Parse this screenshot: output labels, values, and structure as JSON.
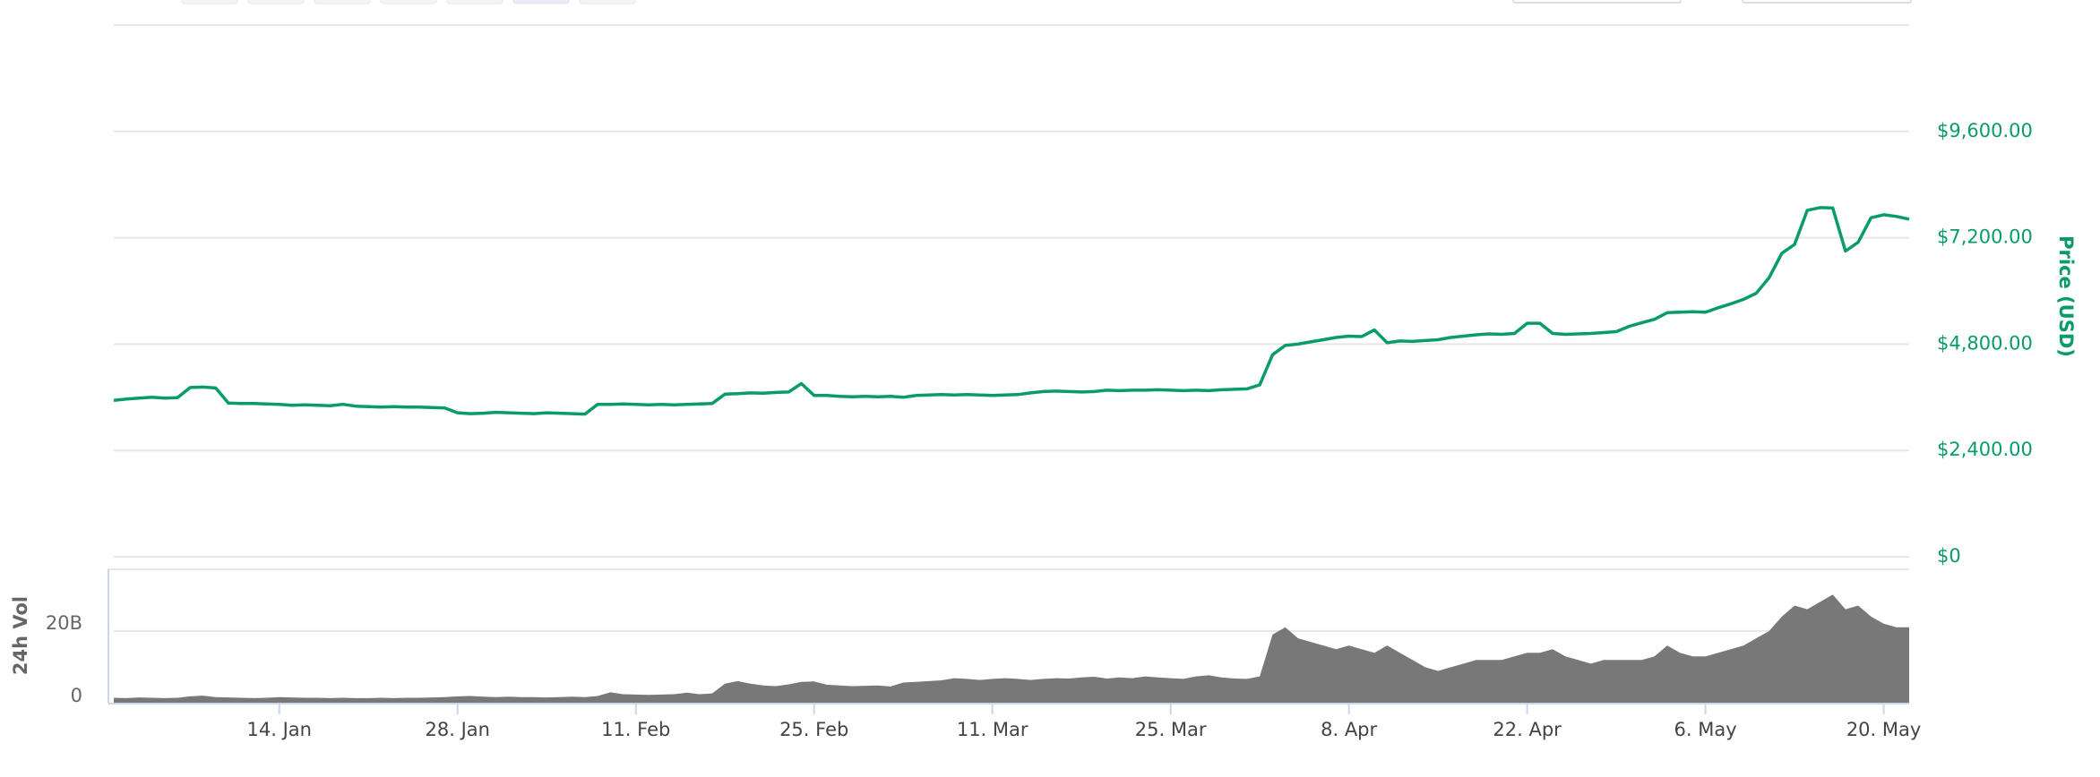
{
  "chart_data": {
    "type": "line",
    "ylabel": "Price (USD)",
    "y2label": "24h Vol",
    "x": [
      "1. Jan",
      "2. Jan",
      "3. Jan",
      "4. Jan",
      "5. Jan",
      "6. Jan",
      "7. Jan",
      "8. Jan",
      "9. Jan",
      "10. Jan",
      "11. Jan",
      "12. Jan",
      "13. Jan",
      "14. Jan",
      "15. Jan",
      "16. Jan",
      "17. Jan",
      "18. Jan",
      "19. Jan",
      "20. Jan",
      "21. Jan",
      "22. Jan",
      "23. Jan",
      "24. Jan",
      "25. Jan",
      "26. Jan",
      "27. Jan",
      "28. Jan",
      "29. Jan",
      "30. Jan",
      "31. Jan",
      "1. Feb",
      "2. Feb",
      "3. Feb",
      "4. Feb",
      "5. Feb",
      "6. Feb",
      "7. Feb",
      "8. Feb",
      "9. Feb",
      "10. Feb",
      "11. Feb",
      "12. Feb",
      "13. Feb",
      "14. Feb",
      "15. Feb",
      "16. Feb",
      "17. Feb",
      "18. Feb",
      "19. Feb",
      "20. Feb",
      "21. Feb",
      "22. Feb",
      "23. Feb",
      "24. Feb",
      "25. Feb",
      "26. Feb",
      "27. Feb",
      "28. Feb",
      "1. Mar",
      "2. Mar",
      "3. Mar",
      "4. Mar",
      "5. Mar",
      "6. Mar",
      "7. Mar",
      "8. Mar",
      "9. Mar",
      "10. Mar",
      "11. Mar",
      "12. Mar",
      "13. Mar",
      "14. Mar",
      "15. Mar",
      "16. Mar",
      "17. Mar",
      "18. Mar",
      "19. Mar",
      "20. Mar",
      "21. Mar",
      "22. Mar",
      "23. Mar",
      "24. Mar",
      "25. Mar",
      "26. Mar",
      "27. Mar",
      "28. Mar",
      "29. Mar",
      "30. Mar",
      "31. Mar",
      "1. Apr",
      "2. Apr",
      "3. Apr",
      "4. Apr",
      "5. Apr",
      "6. Apr",
      "7. Apr",
      "8. Apr",
      "9. Apr",
      "10. Apr",
      "11. Apr",
      "12. Apr",
      "13. Apr",
      "14. Apr",
      "15. Apr",
      "16. Apr",
      "17. Apr",
      "18. Apr",
      "19. Apr",
      "20. Apr",
      "21. Apr",
      "22. Apr",
      "23. Apr",
      "24. Apr",
      "25. Apr",
      "26. Apr",
      "27. Apr",
      "28. Apr",
      "29. Apr",
      "30. Apr",
      "1. May",
      "2. May",
      "3. May",
      "4. May",
      "5. May",
      "6. May",
      "7. May",
      "8. May",
      "9. May",
      "10. May",
      "11. May",
      "12. May",
      "13. May",
      "14. May",
      "15. May",
      "16. May",
      "17. May",
      "18. May",
      "19. May",
      "20. May",
      "21. May",
      "22. May"
    ],
    "xticks": [
      "14. Jan",
      "28. Jan",
      "11. Feb",
      "25. Feb",
      "11. Mar",
      "25. Mar",
      "8. Apr",
      "22. Apr",
      "6. May",
      "20. May"
    ],
    "series": [
      {
        "color": "#0a9b6a",
        "values": [
          3530,
          3560,
          3580,
          3600,
          3580,
          3590,
          3820,
          3830,
          3810,
          3470,
          3460,
          3460,
          3450,
          3440,
          3420,
          3430,
          3420,
          3410,
          3440,
          3400,
          3390,
          3380,
          3390,
          3380,
          3380,
          3370,
          3360,
          3250,
          3230,
          3240,
          3260,
          3250,
          3240,
          3230,
          3250,
          3240,
          3230,
          3220,
          3440,
          3440,
          3450,
          3440,
          3430,
          3440,
          3430,
          3440,
          3450,
          3460,
          3670,
          3680,
          3700,
          3690,
          3710,
          3720,
          3910,
          3640,
          3640,
          3620,
          3610,
          3620,
          3610,
          3620,
          3600,
          3640,
          3650,
          3660,
          3650,
          3660,
          3650,
          3640,
          3650,
          3660,
          3700,
          3730,
          3740,
          3730,
          3720,
          3730,
          3760,
          3750,
          3760,
          3760,
          3770,
          3760,
          3750,
          3760,
          3750,
          3770,
          3780,
          3790,
          3880,
          4560,
          4770,
          4800,
          4850,
          4900,
          4950,
          4980,
          4970,
          5120,
          4830,
          4870,
          4860,
          4880,
          4900,
          4950,
          4980,
          5010,
          5030,
          5020,
          5040,
          5270,
          5270,
          5040,
          5020,
          5030,
          5040,
          5060,
          5080,
          5200,
          5280,
          5360,
          5510,
          5520,
          5530,
          5520,
          5620,
          5710,
          5810,
          5950,
          6300,
          6850,
          7050,
          7820,
          7880,
          7870,
          6900,
          7100,
          7650,
          7720,
          7680,
          7620
        ]
      },
      {
        "type": "area",
        "axis": "y2",
        "color": "#787878",
        "values": [
          1.6,
          1.5,
          1.7,
          1.6,
          1.5,
          1.6,
          2.0,
          2.2,
          1.8,
          1.7,
          1.6,
          1.5,
          1.6,
          1.8,
          1.7,
          1.6,
          1.6,
          1.5,
          1.6,
          1.5,
          1.5,
          1.6,
          1.5,
          1.6,
          1.6,
          1.7,
          1.8,
          2.0,
          2.1,
          1.9,
          1.8,
          1.9,
          1.8,
          1.8,
          1.7,
          1.8,
          1.9,
          1.8,
          2.1,
          3.1,
          2.6,
          2.5,
          2.4,
          2.5,
          2.6,
          3.0,
          2.6,
          2.8,
          5.5,
          6.2,
          5.5,
          5.0,
          4.8,
          5.3,
          6.0,
          6.1,
          5.2,
          5.0,
          4.8,
          4.9,
          5.0,
          4.7,
          5.8,
          6.0,
          6.2,
          6.4,
          7.0,
          6.8,
          6.5,
          6.8,
          7.0,
          6.8,
          6.5,
          6.8,
          7.0,
          6.9,
          7.2,
          7.4,
          6.9,
          7.2,
          7.0,
          7.5,
          7.2,
          7.0,
          6.8,
          7.5,
          7.8,
          7.2,
          6.9,
          6.8,
          7.5,
          19,
          21,
          18,
          17,
          16,
          15,
          16,
          15,
          14,
          16,
          14,
          12,
          10,
          9,
          10,
          11,
          12,
          12,
          12,
          13,
          14,
          14,
          15,
          13,
          12,
          11,
          12,
          12,
          12,
          12,
          13,
          16,
          14,
          13,
          13,
          14,
          15,
          16,
          18,
          20,
          24,
          27,
          26,
          28,
          30,
          26,
          27,
          24,
          22,
          21,
          21
        ]
      }
    ],
    "ylim": [
      0,
      12000
    ],
    "yticks": [
      {
        "value": 0,
        "label": "$0"
      },
      {
        "value": 2400,
        "label": "$2,400.00"
      },
      {
        "value": 4800,
        "label": "$4,800.00"
      },
      {
        "value": 7200,
        "label": "$7,200.00"
      },
      {
        "value": 9600,
        "label": "$9,600.00"
      }
    ],
    "y2lim": [
      0,
      36
    ],
    "y2ticks": [
      0,
      {
        "value": 20,
        "label": "20B"
      }
    ],
    "grid": true
  }
}
